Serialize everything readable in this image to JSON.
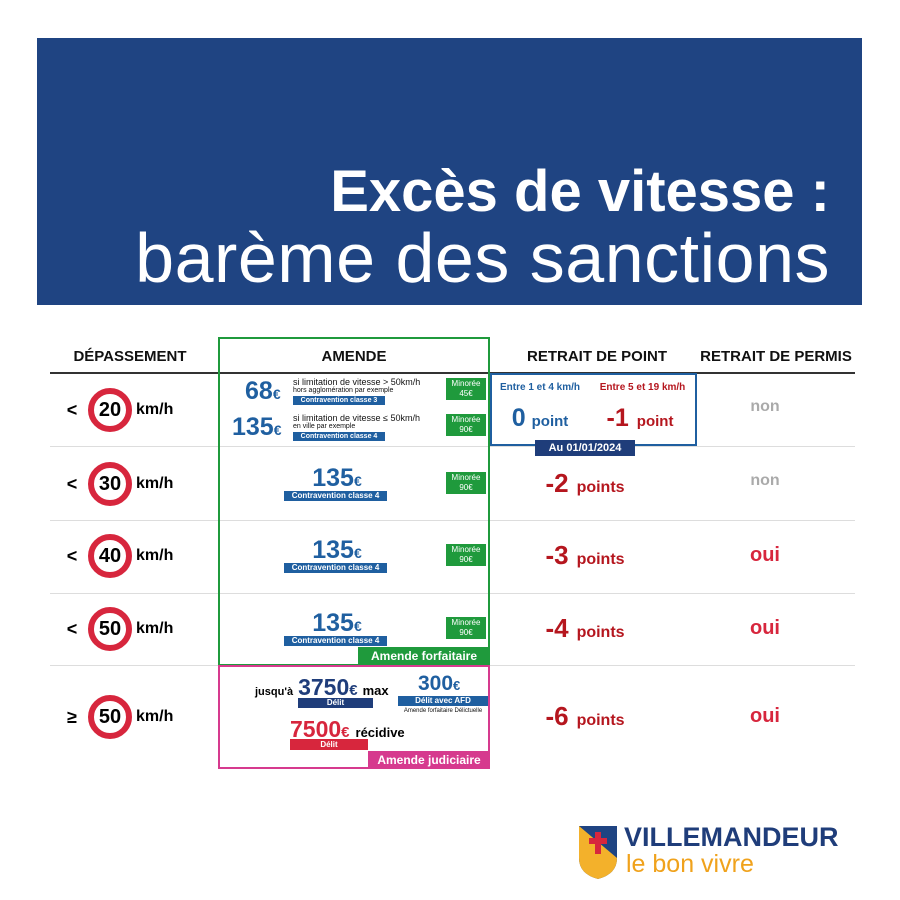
{
  "header": {
    "title": "Excès de vitesse :",
    "subtitle": "barème des sanctions"
  },
  "table": {
    "headers": [
      "DÉPASSEMENT",
      "AMENDE",
      "RETRAIT DE POINT",
      "RETRAIT DE PERMIS"
    ],
    "rows": [
      {
        "prefix": "<",
        "speed": "20",
        "unit": "km/h",
        "fines": [
          {
            "amount": "68",
            "currency": "€",
            "desc": "si limitation de vitesse > 50km/h",
            "note": "hors agglomération par exemple",
            "class": "Contravention classe 3",
            "minoree": "Minorée",
            "minoree_amount": "45€"
          },
          {
            "amount": "135",
            "currency": "€",
            "desc": "si limitation de vitesse ≤ 50km/h",
            "note": "en ville par exemple",
            "class": "Contravention classe 4",
            "minoree": "Minorée",
            "minoree_amount": "90€"
          }
        ],
        "points": {
          "range1": "Entre 1 et 4 km/h",
          "value1": "0",
          "unit1": "point",
          "range2": "Entre 5 et 19 km/h",
          "value2": "-1",
          "unit2": "point",
          "date": "Au 01/01/2024"
        },
        "permis": "non"
      },
      {
        "prefix": "<",
        "speed": "30",
        "unit": "km/h",
        "fine": {
          "amount": "135",
          "currency": "€",
          "class": "Contravention classe 4",
          "minoree": "Minorée",
          "minoree_amount": "90€"
        },
        "points": {
          "value": "-2",
          "unit": "points"
        },
        "permis": "non"
      },
      {
        "prefix": "<",
        "speed": "40",
        "unit": "km/h",
        "fine": {
          "amount": "135",
          "currency": "€",
          "class": "Contravention classe 4",
          "minoree": "Minorée",
          "minoree_amount": "90€"
        },
        "points": {
          "value": "-3",
          "unit": "points"
        },
        "permis": "oui"
      },
      {
        "prefix": "<",
        "speed": "50",
        "unit": "km/h",
        "fine": {
          "amount": "135",
          "currency": "€",
          "class": "Contravention classe 4",
          "minoree": "Minorée",
          "minoree_amount": "90€"
        },
        "points": {
          "value": "-4",
          "unit": "points"
        },
        "permis": "oui"
      },
      {
        "prefix": "≥",
        "speed": "50",
        "unit": "km/h",
        "judiciaire": {
          "prefix": "jusqu'à",
          "amount": "3750",
          "currency": "€",
          "suffix": "max",
          "label": "Délit",
          "afd_amount": "300",
          "afd_currency": "€",
          "afd_label": "Délit avec AFD",
          "afd_note": "Amende forfaitaire Délictuelle",
          "recidive_amount": "7500",
          "recidive_currency": "€",
          "recidive_suffix": "récidive",
          "recidive_label": "Délit"
        },
        "points": {
          "value": "-6",
          "unit": "points"
        },
        "permis": "oui"
      }
    ],
    "forfaitaire_label": "Amende forfaitaire",
    "judiciaire_label": "Amende judiciaire"
  },
  "footer": {
    "brand": "VILLEMANDEUR",
    "slogan": "le bon vivre"
  }
}
